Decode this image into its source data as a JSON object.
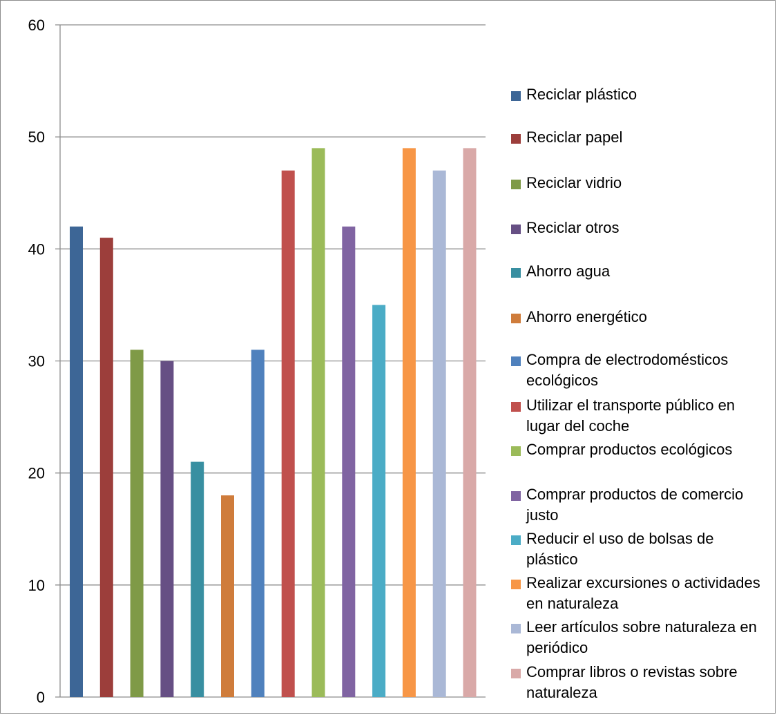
{
  "chart_data": {
    "type": "bar",
    "ylim": [
      0,
      60
    ],
    "yticks": [
      "0",
      "10",
      "20",
      "30",
      "40",
      "50",
      "60"
    ],
    "grid": true,
    "legend_position": "right",
    "series": [
      {
        "name": "Reciclar plástico",
        "value": 42,
        "color": "#3d6696"
      },
      {
        "name": "Reciclar papel",
        "value": 41,
        "color": "#9c3e3b"
      },
      {
        "name": "Reciclar vidrio",
        "value": 31,
        "color": "#7f9a47"
      },
      {
        "name": "Reciclar otros",
        "value": 30,
        "color": "#664f84"
      },
      {
        "name": "Ahorro agua",
        "value": 21,
        "color": "#388fa1"
      },
      {
        "name": "Ahorro energético",
        "value": 18,
        "color": "#cf7c3b"
      },
      {
        "name": "Compra de electrodomésticos ecológicos",
        "value": 31,
        "color": "#4f81bd"
      },
      {
        "name": "Utilizar el transporte público en lugar del coche",
        "value": 47,
        "color": "#c0504d"
      },
      {
        "name": "Comprar productos ecológicos",
        "value": 49,
        "color": "#9bbb59"
      },
      {
        "name": "Comprar productos de comercio justo",
        "value": 42,
        "color": "#8064a2"
      },
      {
        "name": "Reducir el uso de bolsas de plástico",
        "value": 35,
        "color": "#4bacc6"
      },
      {
        "name": "Realizar excursiones o actividades en naturaleza",
        "value": 49,
        "color": "#f79646"
      },
      {
        "name": "Leer artículos sobre naturaleza en periódico",
        "value": 47,
        "color": "#aab8d6"
      },
      {
        "name": "Comprar libros o revistas sobre naturaleza",
        "value": 49,
        "color": "#d9a9a8"
      }
    ]
  }
}
